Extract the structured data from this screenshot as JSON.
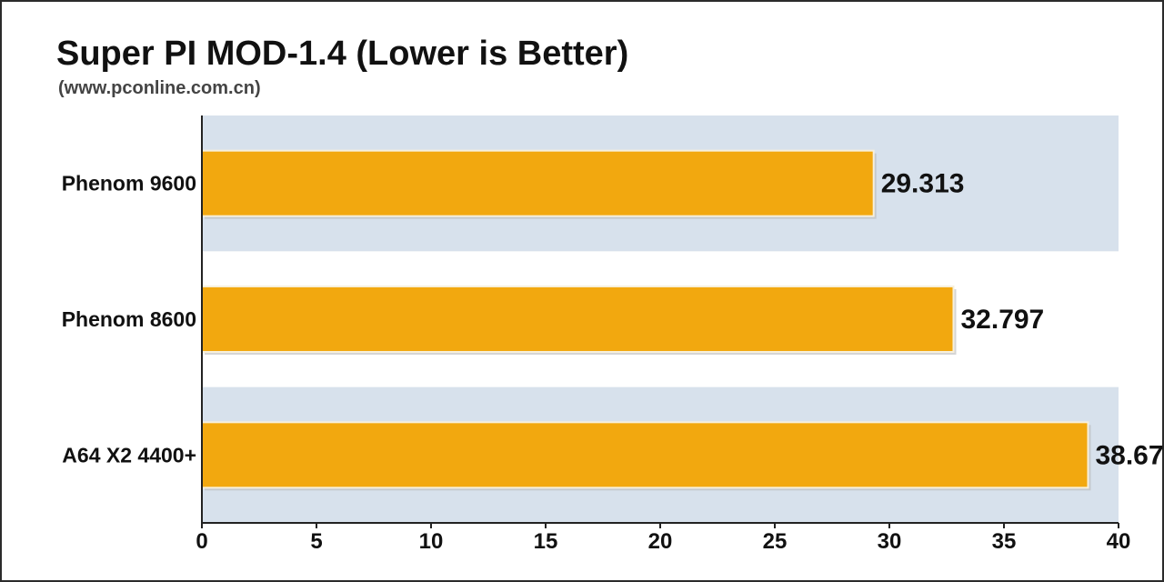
{
  "title": "Super PI MOD-1.4 (Lower is Better)",
  "subtitle": "(www.pconline.com.cn)",
  "colors": {
    "bar": "#f2a80f",
    "band": "#d7e1ec",
    "axis": "#222222"
  },
  "chart_data": {
    "type": "bar",
    "orientation": "horizontal",
    "title": "Super PI MOD-1.4 (Lower is Better)",
    "subtitle": "(www.pconline.com.cn)",
    "categories": [
      "Phenom 9600",
      "Phenom 8600",
      "A64 X2 4400+"
    ],
    "values": [
      29.313,
      32.797,
      38.67
    ],
    "value_labels": [
      "29.313",
      "32.797",
      "38.67"
    ],
    "xlim": [
      0,
      40
    ],
    "xticks": [
      0,
      5,
      10,
      15,
      20,
      25,
      30,
      35,
      40
    ],
    "grid": false,
    "legend": "none"
  }
}
